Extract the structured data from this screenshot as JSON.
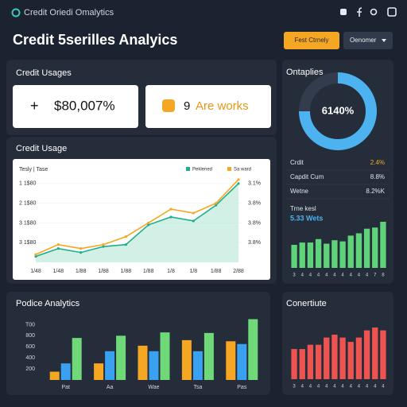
{
  "header": {
    "brand": "Credit Oriedi Omalytics",
    "title": "Credit 5serilles Analyics",
    "buttons": [
      "Fest Ctrnely",
      "Oenomer"
    ]
  },
  "credit_usages": {
    "title": "Credit Usages",
    "cards": [
      {
        "symbol": "+",
        "value": "$80,007%"
      },
      {
        "number": "9",
        "text": "Are works"
      }
    ]
  },
  "ontaplies_stats": [
    [
      "Crdit",
      "2.4%"
    ],
    [
      "Capdit Cum",
      "8.8%"
    ],
    [
      "Wetne",
      "8.2%K"
    ]
  ],
  "chart_data": [
    {
      "type": "line",
      "title": "Credit Usage",
      "legend_title": "Tesly | Tase",
      "categories": [
        "1/48",
        "1/48",
        "1/88",
        "1/88",
        "1/88",
        "1/88",
        "1/8",
        "1/8",
        "1/88",
        "2/88"
      ],
      "series": [
        {
          "name": "Peklened",
          "color": "#1fae8c",
          "values": [
            0.3,
            0.7,
            0.5,
            0.8,
            0.9,
            1.9,
            2.3,
            2.1,
            2.9,
            4.0
          ]
        },
        {
          "name": "Sa ward",
          "color": "#f5a623",
          "values": [
            0.4,
            0.9,
            0.7,
            0.9,
            1.3,
            2.0,
            2.7,
            2.5,
            3.0,
            4.2
          ]
        }
      ],
      "ylim": [
        0,
        4.6
      ],
      "yticks": [
        {
          "value": 4,
          "label": "1 1$80"
        },
        {
          "value": 3,
          "label": "2 1$80"
        },
        {
          "value": 2,
          "label": "3 1$80"
        },
        {
          "value": 1,
          "label": "3 1$80"
        }
      ],
      "y2lim": [
        0,
        4.6
      ],
      "y2ticks": [
        {
          "value": 4,
          "label": "3.1%"
        },
        {
          "value": 3,
          "label": "3.8%"
        },
        {
          "value": 2,
          "label": "3.8%"
        },
        {
          "value": 1,
          "label": "3.8%"
        }
      ]
    },
    {
      "type": "pie",
      "title": "Ontaplies",
      "center_label": "6140%",
      "values": [
        75,
        25
      ],
      "colors": [
        "#4db3f0",
        "#323c4d"
      ]
    },
    {
      "type": "bar",
      "title": "Trne kesl",
      "subtitle": "5.33 Wets",
      "color": "#5fd37a",
      "categories": [
        "3",
        "4",
        "4",
        "4",
        "4",
        "4",
        "4",
        "4",
        "4",
        "4",
        "7",
        "8"
      ],
      "values": [
        2.0,
        2.2,
        2.2,
        2.5,
        2.1,
        2.4,
        2.3,
        2.8,
        3.0,
        3.4,
        3.5,
        4.0
      ]
    },
    {
      "type": "grouped_bar",
      "title": "Podice Analytics",
      "categories": [
        "Pat",
        "Aa",
        "Wae",
        "Tsa",
        "Pas"
      ],
      "series": [
        {
          "name": "Orange",
          "color": "#f5a623",
          "values": [
            150,
            300,
            620,
            720,
            700
          ]
        },
        {
          "name": "Blue",
          "color": "#3aa0f0",
          "values": [
            300,
            520,
            520,
            520,
            650
          ]
        },
        {
          "name": "Green",
          "color": "#6fd97a",
          "values": [
            760,
            800,
            860,
            850,
            1100
          ]
        }
      ],
      "ylim": [
        0,
        1150
      ],
      "yticks": [
        {
          "value": 1000,
          "label": "T00"
        },
        800,
        600,
        400,
        200
      ]
    },
    {
      "type": "bar",
      "title": "Conertiute",
      "color": "#ef5350",
      "categories": [
        "3",
        "4",
        "4",
        "4",
        "4",
        "4",
        "4",
        "4",
        "4",
        "4",
        "4",
        "4"
      ],
      "values": [
        4.2,
        4.2,
        4.8,
        4.8,
        5.8,
        6.2,
        5.8,
        5.2,
        5.8,
        6.8,
        7.2,
        6.8
      ]
    }
  ]
}
